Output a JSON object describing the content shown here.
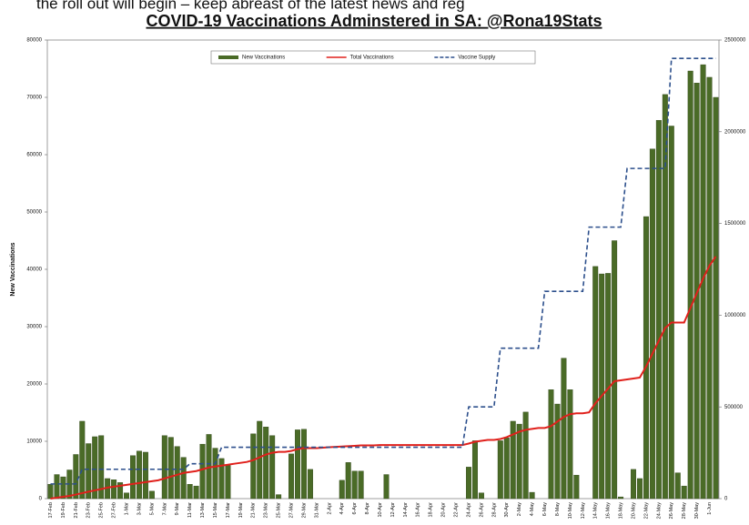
{
  "page_text": "the roll out will begin – keep abreast of the latest news and reg",
  "chart_data": {
    "type": "bar-line",
    "title": "COVID-19 Vaccinations Adminstered in SA: @Rona19Stats",
    "y_label": "New Vaccinations",
    "ylim": [
      0,
      80000
    ],
    "yticks": [
      0,
      10000,
      20000,
      30000,
      40000,
      50000,
      60000,
      70000,
      80000
    ],
    "y2lim": [
      0,
      2500000
    ],
    "y2ticks": [
      0,
      500000,
      1000000,
      1500000,
      2000000,
      2500000
    ],
    "grid": false,
    "legend": "top",
    "categories": [
      "17-Feb",
      null,
      "19-Feb",
      null,
      "21-Feb",
      null,
      "23-Feb",
      null,
      "25-Feb",
      null,
      "27-Feb",
      null,
      "1-Mar",
      null,
      "3-Mar",
      null,
      "5-Mar",
      null,
      "7-Mar",
      null,
      "9-Mar",
      null,
      "11-Mar",
      null,
      "13-Mar",
      null,
      "15-Mar",
      null,
      "17-Mar",
      null,
      "19-Mar",
      null,
      "21-Mar",
      null,
      "23-Mar",
      null,
      "25-Mar",
      null,
      "27-Mar",
      null,
      "29-Mar",
      null,
      "31-Mar",
      null,
      "2-Apr",
      null,
      "4-Apr",
      null,
      "6-Apr",
      null,
      "8-Apr",
      null,
      "10-Apr",
      null,
      "12-Apr",
      null,
      "14-Apr",
      null,
      "16-Apr",
      null,
      "18-Apr",
      null,
      "20-Apr",
      null,
      "22-Apr",
      null,
      "24-Apr",
      null,
      "26-Apr",
      null,
      "28-Apr",
      null,
      "30-Apr",
      null,
      "2-May",
      null,
      "4-May",
      null,
      "6-May",
      null,
      "8-May",
      null,
      "10-May",
      null,
      "12-May",
      null,
      "14-May",
      null,
      "16-May",
      null,
      "18-May",
      null,
      "20-May",
      null,
      "22-May",
      null,
      "24-May",
      null,
      "26-May",
      null,
      "28-May",
      null,
      "30-May",
      null,
      "1-Jun",
      null
    ],
    "series": [
      {
        "name": "New Vaccinations",
        "kind": "bar",
        "color": "#4a6b27",
        "axis": "y",
        "values": [
          2500,
          4200,
          3800,
          5000,
          7700,
          13500,
          9600,
          10800,
          11000,
          3500,
          3300,
          2800,
          1000,
          7500,
          8300,
          8100,
          1300,
          0,
          11000,
          10700,
          9100,
          7200,
          2500,
          2200,
          9500,
          11200,
          8800,
          7000,
          5800,
          0,
          0,
          0,
          11300,
          13500,
          12500,
          11000,
          700,
          0,
          7800,
          12000,
          12100,
          5100,
          0,
          0,
          0,
          0,
          3200,
          6300,
          4800,
          4800,
          0,
          0,
          0,
          4200,
          0,
          0,
          0,
          0,
          0,
          0,
          0,
          0,
          0,
          0,
          0,
          0,
          5500,
          10100,
          1000,
          0,
          0,
          10100,
          10600,
          13500,
          13000,
          15100,
          1100,
          0,
          0,
          19000,
          16500,
          24500,
          19000,
          4100,
          0,
          0,
          40500,
          39200,
          39300,
          45000,
          300,
          0,
          5100,
          3500,
          49200,
          61000,
          66000,
          70500,
          65000,
          4500,
          2200,
          74600,
          72500,
          75700,
          73500,
          70000
        ]
      },
      {
        "name": "Total Vaccinations",
        "kind": "line",
        "color": "#e0201b",
        "axis": "y2",
        "values": [
          0,
          5000,
          10000,
          15000,
          22000,
          30000,
          38000,
          45000,
          52000,
          60000,
          65000,
          70000,
          75000,
          80000,
          85000,
          90000,
          95000,
          100000,
          110000,
          120000,
          130000,
          140000,
          145000,
          150000,
          160000,
          170000,
          175000,
          180000,
          185000,
          190000,
          195000,
          200000,
          210000,
          225000,
          240000,
          250000,
          255000,
          255000,
          260000,
          270000,
          275000,
          275000,
          275000,
          278000,
          280000,
          282000,
          284000,
          286000,
          288000,
          290000,
          290000,
          290000,
          292000,
          292000,
          292000,
          292000,
          292000,
          292000,
          292000,
          292000,
          292000,
          292000,
          292000,
          292000,
          292000,
          292000,
          300000,
          310000,
          315000,
          320000,
          320000,
          325000,
          335000,
          350000,
          365000,
          375000,
          380000,
          385000,
          385000,
          395000,
          420000,
          445000,
          460000,
          465000,
          465000,
          470000,
          520000,
          560000,
          600000,
          640000,
          645000,
          650000,
          655000,
          660000,
          720000,
          790000,
          860000,
          930000,
          960000,
          960000,
          960000,
          1040000,
          1120000,
          1200000,
          1270000,
          1320000
        ]
      },
      {
        "name": "Vaccine Supply",
        "kind": "dashed",
        "color": "#2c4f8c",
        "axis": "y2",
        "values": [
          80000,
          80000,
          80000,
          80000,
          80000,
          160000,
          160000,
          160000,
          160000,
          160000,
          160000,
          160000,
          160000,
          160000,
          160000,
          160000,
          160000,
          160000,
          160000,
          160000,
          160000,
          160000,
          190000,
          190000,
          190000,
          190000,
          190000,
          280000,
          280000,
          280000,
          280000,
          280000,
          280000,
          280000,
          280000,
          280000,
          280000,
          280000,
          280000,
          280000,
          280000,
          280000,
          280000,
          280000,
          280000,
          280000,
          280000,
          280000,
          280000,
          280000,
          280000,
          280000,
          280000,
          280000,
          280000,
          280000,
          280000,
          280000,
          280000,
          280000,
          280000,
          280000,
          280000,
          280000,
          280000,
          280000,
          500000,
          500000,
          500000,
          500000,
          500000,
          820000,
          820000,
          820000,
          820000,
          820000,
          820000,
          820000,
          1130000,
          1130000,
          1130000,
          1130000,
          1130000,
          1130000,
          1130000,
          1480000,
          1480000,
          1480000,
          1480000,
          1480000,
          1480000,
          1800000,
          1800000,
          1800000,
          1800000,
          1800000,
          1800000,
          1800000,
          2400000,
          2400000,
          2400000,
          2400000,
          2400000,
          2400000,
          2400000,
          2400000
        ]
      }
    ]
  }
}
